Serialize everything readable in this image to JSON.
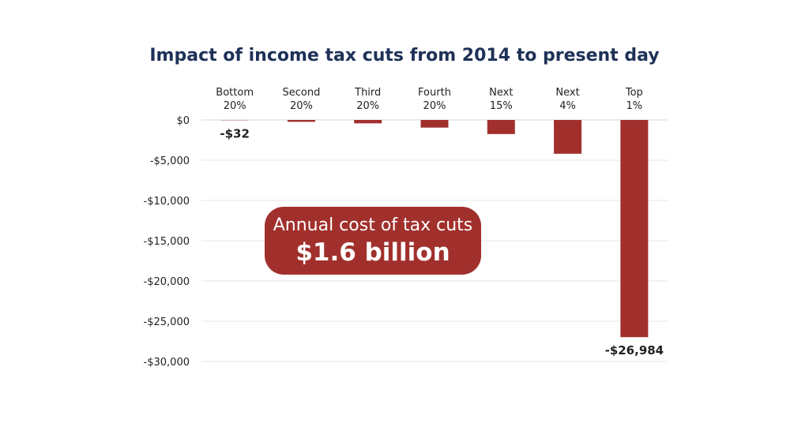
{
  "chart_data": {
    "type": "bar",
    "title": "Impact of income tax cuts from 2014 to present day",
    "categories": [
      [
        "Bottom",
        "20%"
      ],
      [
        "Second",
        "20%"
      ],
      [
        "Third",
        "20%"
      ],
      [
        "Fourth",
        "20%"
      ],
      [
        "Next",
        "15%"
      ],
      [
        "Next",
        "4%"
      ],
      [
        "Top",
        "1%"
      ]
    ],
    "values": [
      -32,
      -230,
      -420,
      -950,
      -1750,
      -4200,
      -26984
    ],
    "data_labels": [
      "-$32",
      "",
      "",
      "",
      "",
      "",
      "-$26,984"
    ],
    "ylim": [
      -30000,
      0
    ],
    "yticks": [
      0,
      -5000,
      -10000,
      -15000,
      -20000,
      -25000,
      -30000
    ],
    "ytick_labels": [
      "$0",
      "-$5,000",
      "-$10,000",
      "-$15,000",
      "-$20,000",
      "-$25,000",
      "-$30,000"
    ],
    "bar_color": "#a1302d",
    "xlabel": "",
    "ylabel": ""
  },
  "callout": {
    "label": "Annual cost of tax cuts",
    "value": "$1.6 billion"
  }
}
